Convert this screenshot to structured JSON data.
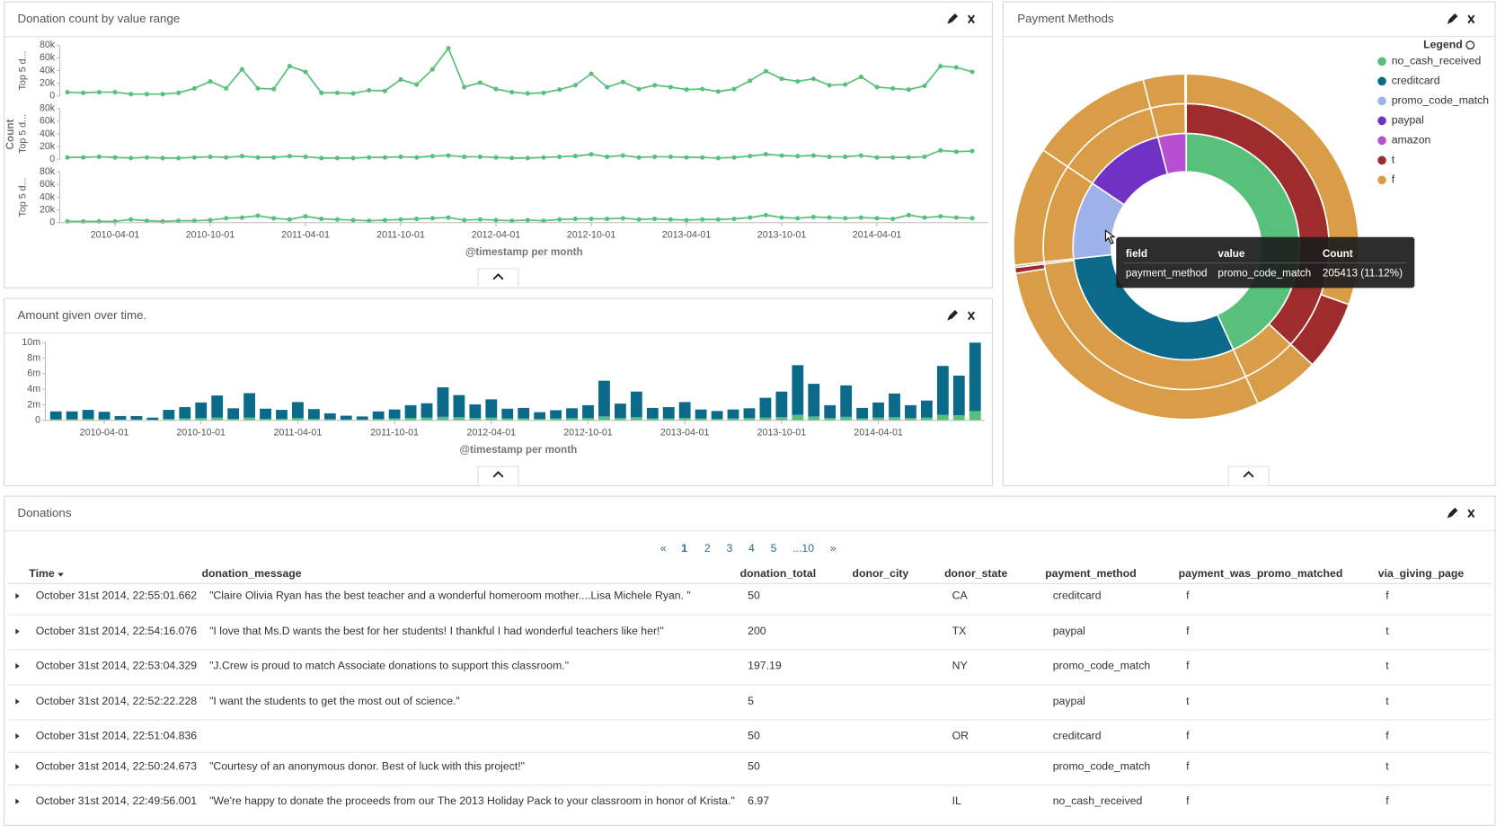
{
  "chart_data": [
    {
      "type": "line",
      "title": "Donation count by value range",
      "xlabel": "@timestamp per month",
      "ylabel": "Count",
      "x": [
        "2010-01-01",
        "2010-02-01",
        "2010-03-01",
        "2010-04-01",
        "2010-05-01",
        "2010-06-01",
        "2010-07-01",
        "2010-08-01",
        "2010-09-01",
        "2010-10-01",
        "2010-11-01",
        "2010-12-01",
        "2011-01-01",
        "2011-02-01",
        "2011-03-01",
        "2011-04-01",
        "2011-05-01",
        "2011-06-01",
        "2011-07-01",
        "2011-08-01",
        "2011-09-01",
        "2011-10-01",
        "2011-11-01",
        "2011-12-01",
        "2012-01-01",
        "2012-02-01",
        "2012-03-01",
        "2012-04-01",
        "2012-05-01",
        "2012-06-01",
        "2012-07-01",
        "2012-08-01",
        "2012-09-01",
        "2012-10-01",
        "2012-11-01",
        "2012-12-01",
        "2013-01-01",
        "2013-02-01",
        "2013-03-01",
        "2013-04-01",
        "2013-05-01",
        "2013-06-01",
        "2013-07-01",
        "2013-08-01",
        "2013-09-01",
        "2013-10-01",
        "2013-11-01",
        "2013-12-01",
        "2014-01-01",
        "2014-02-01",
        "2014-03-01",
        "2014-04-01",
        "2014-05-01",
        "2014-06-01",
        "2014-07-01",
        "2014-08-01",
        "2014-09-01",
        "2014-10-01"
      ],
      "xticks": [
        "2010-04-01",
        "2010-10-01",
        "2011-04-01",
        "2011-10-01",
        "2012-04-01",
        "2012-10-01",
        "2013-04-01",
        "2013-10-01",
        "2014-04-01"
      ],
      "subplots": [
        {
          "ylabel": "Top 5 d...",
          "ylim": [
            0,
            80000
          ],
          "yticks": [
            0,
            {
              "value": 20000,
              "label": "20k"
            },
            {
              "value": 40000,
              "label": "40k"
            },
            {
              "value": 60000,
              "label": "60k"
            },
            {
              "value": 80000,
              "label": "80k"
            }
          ],
          "series": [
            {
              "color": "#57c17b",
              "values": [
                6000,
                5000,
                6000,
                6000,
                3000,
                3000,
                3000,
                5000,
                12000,
                23000,
                12000,
                42000,
                12000,
                11000,
                47000,
                38000,
                5000,
                5000,
                4000,
                9000,
                8000,
                26000,
                18000,
                42000,
                75000,
                14000,
                21000,
                11000,
                6000,
                4000,
                5000,
                10000,
                17000,
                35000,
                14000,
                22000,
                11000,
                17000,
                14000,
                10000,
                11000,
                7000,
                11000,
                24000,
                39000,
                27000,
                23000,
                27000,
                17000,
                18000,
                30000,
                14000,
                12000,
                10000,
                16000,
                47000,
                45000,
                38000
              ]
            }
          ]
        },
        {
          "ylabel": "Top 5 d...",
          "ylim": [
            0,
            80000
          ],
          "yticks": [
            0,
            {
              "value": 20000,
              "label": "20k"
            },
            {
              "value": 40000,
              "label": "40k"
            },
            {
              "value": 60000,
              "label": "60k"
            },
            {
              "value": 80000,
              "label": "80k"
            }
          ],
          "series": [
            {
              "color": "#57c17b",
              "values": [
                3000,
                3000,
                4000,
                3000,
                2000,
                3000,
                2000,
                2000,
                3000,
                4000,
                3000,
                5000,
                3000,
                3000,
                5000,
                4000,
                2000,
                2000,
                2000,
                3000,
                3000,
                4000,
                3000,
                5000,
                6000,
                4000,
                4000,
                3000,
                2000,
                2000,
                3000,
                4000,
                5000,
                8000,
                4000,
                6000,
                3000,
                4000,
                4000,
                3000,
                3000,
                2000,
                3000,
                5000,
                8000,
                6000,
                5000,
                6000,
                4000,
                4000,
                6000,
                3000,
                3000,
                3000,
                4000,
                14000,
                12000,
                13000
              ]
            }
          ]
        },
        {
          "ylabel": "Top 5 d...",
          "ylim": [
            0,
            80000
          ],
          "yticks": [
            0,
            {
              "value": 20000,
              "label": "20k"
            },
            {
              "value": 40000,
              "label": "40k"
            },
            {
              "value": 60000,
              "label": "60k"
            },
            {
              "value": 80000,
              "label": "80k"
            }
          ],
          "series": [
            {
              "color": "#57c17b",
              "values": [
                2000,
                2000,
                2000,
                2000,
                5000,
                3000,
                2000,
                3000,
                3000,
                4000,
                7000,
                8000,
                11000,
                7000,
                5000,
                10000,
                6000,
                5000,
                4000,
                3000,
                4000,
                5000,
                6000,
                7000,
                8000,
                4000,
                5000,
                4000,
                3000,
                4000,
                3000,
                5000,
                6000,
                6000,
                6000,
                7000,
                5000,
                6000,
                5000,
                4000,
                5000,
                5000,
                6000,
                8000,
                12000,
                8000,
                7000,
                9000,
                8000,
                7000,
                8000,
                7000,
                6000,
                12000,
                8000,
                10000,
                8000,
                7000
              ]
            }
          ]
        }
      ]
    },
    {
      "type": "bar",
      "stacked": true,
      "title": "Amount given over time.",
      "xlabel": "@timestamp per month",
      "x": [
        "2010-01-01",
        "2010-02-01",
        "2010-03-01",
        "2010-04-01",
        "2010-05-01",
        "2010-06-01",
        "2010-07-01",
        "2010-08-01",
        "2010-09-01",
        "2010-10-01",
        "2010-11-01",
        "2010-12-01",
        "2011-01-01",
        "2011-02-01",
        "2011-03-01",
        "2011-04-01",
        "2011-05-01",
        "2011-06-01",
        "2011-07-01",
        "2011-08-01",
        "2011-09-01",
        "2011-10-01",
        "2011-11-01",
        "2011-12-01",
        "2012-01-01",
        "2012-02-01",
        "2012-03-01",
        "2012-04-01",
        "2012-05-01",
        "2012-06-01",
        "2012-07-01",
        "2012-08-01",
        "2012-09-01",
        "2012-10-01",
        "2012-11-01",
        "2012-12-01",
        "2013-01-01",
        "2013-02-01",
        "2013-03-01",
        "2013-04-01",
        "2013-05-01",
        "2013-06-01",
        "2013-07-01",
        "2013-08-01",
        "2013-09-01",
        "2013-10-01",
        "2013-11-01",
        "2013-12-01",
        "2014-01-01",
        "2014-02-01",
        "2014-03-01",
        "2014-04-01",
        "2014-05-01",
        "2014-06-01",
        "2014-07-01",
        "2014-08-01",
        "2014-09-01",
        "2014-10-01"
      ],
      "xticks": [
        "2010-04-01",
        "2010-10-01",
        "2011-04-01",
        "2011-10-01",
        "2012-04-01",
        "2012-10-01",
        "2013-04-01",
        "2013-10-01",
        "2014-04-01"
      ],
      "ylim": [
        0,
        10000000
      ],
      "yticks": [
        0,
        {
          "value": 2000000,
          "label": "2m"
        },
        {
          "value": 4000000,
          "label": "4m"
        },
        {
          "value": 6000000,
          "label": "6m"
        },
        {
          "value": 8000000,
          "label": "8m"
        },
        {
          "value": 10000000,
          "label": "10m"
        }
      ],
      "series": [
        {
          "color": "#57c17b",
          "values": [
            150000,
            150000,
            200000,
            150000,
            100000,
            100000,
            50000,
            200000,
            250000,
            300000,
            350000,
            200000,
            350000,
            200000,
            200000,
            300000,
            200000,
            150000,
            100000,
            100000,
            200000,
            250000,
            300000,
            350000,
            450000,
            400000,
            300000,
            350000,
            250000,
            250000,
            200000,
            250000,
            300000,
            300000,
            500000,
            300000,
            400000,
            250000,
            250000,
            300000,
            250000,
            200000,
            250000,
            300000,
            350000,
            400000,
            700000,
            500000,
            300000,
            450000,
            250000,
            350000,
            400000,
            300000,
            350000,
            700000,
            650000,
            1200000
          ]
        },
        {
          "color": "#0b6a8a",
          "values": [
            1000000,
            1000000,
            1150000,
            950000,
            450000,
            450000,
            300000,
            1150000,
            1450000,
            2000000,
            2850000,
            1350000,
            3150000,
            1300000,
            1150000,
            2050000,
            1250000,
            750000,
            500000,
            400000,
            950000,
            1150000,
            1650000,
            1850000,
            3800000,
            2850000,
            1750000,
            2350000,
            1250000,
            1350000,
            850000,
            1050000,
            1250000,
            1650000,
            4600000,
            1850000,
            3300000,
            1350000,
            1450000,
            2050000,
            1150000,
            1000000,
            1150000,
            1250000,
            2550000,
            3300000,
            6400000,
            4200000,
            1650000,
            4050000,
            1350000,
            1950000,
            3050000,
            1650000,
            2200000,
            6300000,
            5100000,
            8800000
          ]
        }
      ]
    },
    {
      "type": "sunburst",
      "title": "Payment Methods",
      "legend_title": "Legend",
      "legend": [
        {
          "label": "no_cash_received",
          "color": "#57c17b"
        },
        {
          "label": "creditcard",
          "color": "#0b6a8a"
        },
        {
          "label": "promo_code_match",
          "color": "#9eb2ea"
        },
        {
          "label": "paypal",
          "color": "#6f32c4"
        },
        {
          "label": "amazon",
          "color": "#b64fd1"
        },
        {
          "label": "t",
          "color": "#9e2c2c"
        },
        {
          "label": "f",
          "color": "#d99d48"
        }
      ],
      "data": [
        {
          "label": "no_cash_received",
          "value": 794000,
          "children": [
            {
              "label": "t",
              "value": 680000,
              "children": [
                {
                  "label": "f",
                  "value": 560000
                },
                {
                  "label": "t",
                  "value": 120000
                }
              ]
            },
            {
              "label": "f",
              "value": 114000,
              "children": [
                {
                  "label": "f",
                  "value": 114000
                }
              ]
            }
          ]
        },
        {
          "label": "creditcard",
          "value": 554000,
          "children": [
            {
              "label": "f",
              "value": 550000,
              "children": [
                {
                  "label": "f",
                  "value": 540000
                },
                {
                  "label": "t",
                  "value": 10000
                }
              ]
            },
            {
              "label": "t",
              "value": 4000,
              "children": [
                {
                  "label": "f",
                  "value": 4000
                }
              ]
            }
          ]
        },
        {
          "label": "promo_code_match",
          "value": 205413,
          "children": [
            {
              "label": "f",
              "value": 205413,
              "children": [
                {
                  "label": "f",
                  "value": 205413
                }
              ]
            }
          ]
        },
        {
          "label": "paypal",
          "value": 212000,
          "children": [
            {
              "label": "f",
              "value": 212000,
              "children": [
                {
                  "label": "f",
                  "value": 212000
                }
              ]
            }
          ]
        },
        {
          "label": "amazon",
          "value": 74000,
          "children": [
            {
              "label": "f",
              "value": 72000,
              "children": [
                {
                  "label": "f",
                  "value": 72000
                }
              ]
            },
            {
              "label": "t",
              "value": 2000,
              "children": [
                {
                  "label": "f",
                  "value": 2000
                }
              ]
            }
          ]
        }
      ],
      "tooltip": {
        "headers": [
          "field",
          "value",
          "Count"
        ],
        "row": [
          "payment_method",
          "promo_code_match",
          "205413 (11.12%)"
        ]
      }
    }
  ],
  "table": {
    "title": "Donations",
    "pagination": [
      "«",
      "1",
      "2",
      "3",
      "4",
      "5",
      "...10",
      "»"
    ],
    "columns": [
      "Time",
      "donation_message",
      "donation_total",
      "donor_city",
      "donor_state",
      "payment_method",
      "payment_was_promo_matched",
      "via_giving_page"
    ],
    "rows": [
      [
        "October 31st 2014, 22:55:01.662",
        "\"Claire Olivia Ryan has the best teacher and a wonderful homeroom mother....Lisa Michele Ryan. \"",
        50,
        null,
        "CA",
        "creditcard",
        "f",
        "f"
      ],
      [
        "October 31st 2014, 22:54:16.076",
        "\"I love that Ms.D wants the best for her students! I thankful I had wonderful teachers like her!\"",
        200,
        null,
        "TX",
        "paypal",
        "f",
        "t"
      ],
      [
        "October 31st 2014, 22:53:04.329",
        "\"J.Crew is proud to match Associate donations to support this classroom.\"",
        197.19,
        null,
        "NY",
        "promo_code_match",
        "f",
        "t"
      ],
      [
        "October 31st 2014, 22:52:22.228",
        "\"I want the students to get the most out of science.\"",
        5,
        null,
        null,
        "paypal",
        "t",
        "t"
      ],
      [
        "October 31st 2014, 22:51:04.836",
        null,
        50,
        null,
        "OR",
        "creditcard",
        "f",
        "f"
      ],
      [
        "October 31st 2014, 22:50:24.673",
        "\"Courtesy of an anonymous donor. Best of luck with this project!\"",
        50,
        null,
        null,
        "promo_code_match",
        "f",
        "t"
      ],
      [
        "October 31st 2014, 22:49:56.001",
        "\"We're happy to donate the proceeds from our The 2013 Holiday Pack to your classroom in honor of Krista.\"",
        6.97,
        null,
        "IL",
        "no_cash_received",
        "f",
        "f"
      ]
    ]
  }
}
